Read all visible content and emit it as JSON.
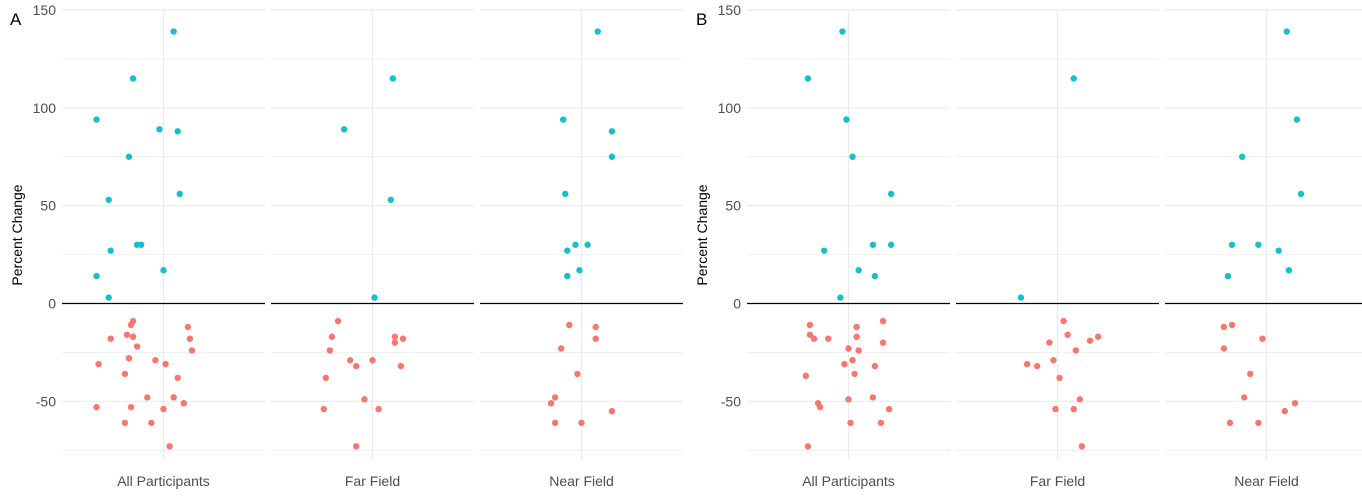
{
  "chart_data": [
    {
      "panel_label": "A",
      "type": "scatter",
      "ylabel": "Percent Change",
      "ylim": [
        -80,
        150
      ],
      "yticks": [
        150,
        100,
        50,
        0,
        -50
      ],
      "reference_line": 0,
      "grid": true,
      "legend": "none",
      "colors": {
        "positive": "#17BECF",
        "negative": "#F8766D",
        "grid": "#EBEBEB",
        "zero_line": "#000000"
      },
      "facets": [
        {
          "name": "All Participants",
          "points": [
            {
              "x": 0.55,
              "y": 139
            },
            {
              "x": 0.35,
              "y": 115
            },
            {
              "x": 0.17,
              "y": 94
            },
            {
              "x": 0.48,
              "y": 89
            },
            {
              "x": 0.57,
              "y": 88
            },
            {
              "x": 0.33,
              "y": 75
            },
            {
              "x": 0.58,
              "y": 56
            },
            {
              "x": 0.23,
              "y": 53
            },
            {
              "x": 0.37,
              "y": 30
            },
            {
              "x": 0.39,
              "y": 30
            },
            {
              "x": 0.24,
              "y": 27
            },
            {
              "x": 0.5,
              "y": 17
            },
            {
              "x": 0.17,
              "y": 14
            },
            {
              "x": 0.23,
              "y": 3
            },
            {
              "x": 0.35,
              "y": -9
            },
            {
              "x": 0.34,
              "y": -11
            },
            {
              "x": 0.62,
              "y": -12
            },
            {
              "x": 0.32,
              "y": -16
            },
            {
              "x": 0.35,
              "y": -17
            },
            {
              "x": 0.24,
              "y": -18
            },
            {
              "x": 0.63,
              "y": -18
            },
            {
              "x": 0.37,
              "y": -22
            },
            {
              "x": 0.64,
              "y": -24
            },
            {
              "x": 0.33,
              "y": -28
            },
            {
              "x": 0.46,
              "y": -29
            },
            {
              "x": 0.18,
              "y": -31
            },
            {
              "x": 0.51,
              "y": -31
            },
            {
              "x": 0.31,
              "y": -36
            },
            {
              "x": 0.57,
              "y": -38
            },
            {
              "x": 0.42,
              "y": -48
            },
            {
              "x": 0.55,
              "y": -48
            },
            {
              "x": 0.6,
              "y": -51
            },
            {
              "x": 0.17,
              "y": -53
            },
            {
              "x": 0.34,
              "y": -53
            },
            {
              "x": 0.5,
              "y": -54
            },
            {
              "x": 0.31,
              "y": -61
            },
            {
              "x": 0.44,
              "y": -61
            },
            {
              "x": 0.53,
              "y": -73
            }
          ]
        },
        {
          "name": "Far Field",
          "points": [
            {
              "x": 0.6,
              "y": 115
            },
            {
              "x": 0.36,
              "y": 89
            },
            {
              "x": 0.59,
              "y": 53
            },
            {
              "x": 0.51,
              "y": 3
            },
            {
              "x": 0.33,
              "y": -9
            },
            {
              "x": 0.61,
              "y": -17
            },
            {
              "x": 0.3,
              "y": -17
            },
            {
              "x": 0.65,
              "y": -18
            },
            {
              "x": 0.61,
              "y": -20
            },
            {
              "x": 0.29,
              "y": -24
            },
            {
              "x": 0.39,
              "y": -29
            },
            {
              "x": 0.5,
              "y": -29
            },
            {
              "x": 0.42,
              "y": -32
            },
            {
              "x": 0.64,
              "y": -32
            },
            {
              "x": 0.27,
              "y": -38
            },
            {
              "x": 0.46,
              "y": -49
            },
            {
              "x": 0.26,
              "y": -54
            },
            {
              "x": 0.53,
              "y": -54
            },
            {
              "x": 0.42,
              "y": -73
            }
          ]
        },
        {
          "name": "Near Field",
          "points": [
            {
              "x": 0.58,
              "y": 139
            },
            {
              "x": 0.41,
              "y": 94
            },
            {
              "x": 0.65,
              "y": 88
            },
            {
              "x": 0.65,
              "y": 75
            },
            {
              "x": 0.42,
              "y": 56
            },
            {
              "x": 0.47,
              "y": 30
            },
            {
              "x": 0.53,
              "y": 30
            },
            {
              "x": 0.43,
              "y": 27
            },
            {
              "x": 0.49,
              "y": 17
            },
            {
              "x": 0.43,
              "y": 14
            },
            {
              "x": 0.44,
              "y": -11
            },
            {
              "x": 0.57,
              "y": -12
            },
            {
              "x": 0.57,
              "y": -18
            },
            {
              "x": 0.4,
              "y": -23
            },
            {
              "x": 0.48,
              "y": -36
            },
            {
              "x": 0.37,
              "y": -48
            },
            {
              "x": 0.35,
              "y": -51
            },
            {
              "x": 0.65,
              "y": -55
            },
            {
              "x": 0.37,
              "y": -61
            },
            {
              "x": 0.5,
              "y": -61
            }
          ]
        }
      ]
    },
    {
      "panel_label": "B",
      "type": "scatter",
      "ylabel": "Percent Change",
      "ylim": [
        -80,
        150
      ],
      "yticks": [
        150,
        100,
        50,
        0,
        -50
      ],
      "reference_line": 0,
      "grid": true,
      "legend": "none",
      "colors": {
        "positive": "#17BECF",
        "negative": "#F8766D",
        "grid": "#EBEBEB",
        "zero_line": "#000000"
      },
      "facets": [
        {
          "name": "All Participants",
          "points": [
            {
              "x": 0.47,
              "y": 139
            },
            {
              "x": 0.3,
              "y": 115
            },
            {
              "x": 0.49,
              "y": 94
            },
            {
              "x": 0.52,
              "y": 75
            },
            {
              "x": 0.71,
              "y": 56
            },
            {
              "x": 0.62,
              "y": 30
            },
            {
              "x": 0.71,
              "y": 30
            },
            {
              "x": 0.38,
              "y": 27
            },
            {
              "x": 0.55,
              "y": 17
            },
            {
              "x": 0.63,
              "y": 14
            },
            {
              "x": 0.46,
              "y": 3
            },
            {
              "x": 0.67,
              "y": -9
            },
            {
              "x": 0.31,
              "y": -11
            },
            {
              "x": 0.54,
              "y": -12
            },
            {
              "x": 0.31,
              "y": -16
            },
            {
              "x": 0.54,
              "y": -17
            },
            {
              "x": 0.33,
              "y": -18
            },
            {
              "x": 0.4,
              "y": -18
            },
            {
              "x": 0.67,
              "y": -20
            },
            {
              "x": 0.5,
              "y": -23
            },
            {
              "x": 0.55,
              "y": -24
            },
            {
              "x": 0.52,
              "y": -29
            },
            {
              "x": 0.48,
              "y": -31
            },
            {
              "x": 0.63,
              "y": -32
            },
            {
              "x": 0.53,
              "y": -36
            },
            {
              "x": 0.29,
              "y": -37
            },
            {
              "x": 0.62,
              "y": -48
            },
            {
              "x": 0.5,
              "y": -49
            },
            {
              "x": 0.35,
              "y": -51
            },
            {
              "x": 0.36,
              "y": -53
            },
            {
              "x": 0.7,
              "y": -54
            },
            {
              "x": 0.66,
              "y": -61
            },
            {
              "x": 0.51,
              "y": -61
            },
            {
              "x": 0.3,
              "y": -73
            }
          ]
        },
        {
          "name": "Far Field",
          "points": [
            {
              "x": 0.58,
              "y": 115
            },
            {
              "x": 0.32,
              "y": 3
            },
            {
              "x": 0.53,
              "y": -9
            },
            {
              "x": 0.55,
              "y": -16
            },
            {
              "x": 0.7,
              "y": -17
            },
            {
              "x": 0.66,
              "y": -19
            },
            {
              "x": 0.46,
              "y": -20
            },
            {
              "x": 0.59,
              "y": -24
            },
            {
              "x": 0.48,
              "y": -29
            },
            {
              "x": 0.35,
              "y": -31
            },
            {
              "x": 0.4,
              "y": -32
            },
            {
              "x": 0.51,
              "y": -38
            },
            {
              "x": 0.61,
              "y": -49
            },
            {
              "x": 0.49,
              "y": -54
            },
            {
              "x": 0.58,
              "y": -54
            },
            {
              "x": 0.62,
              "y": -73
            }
          ]
        },
        {
          "name": "Near Field",
          "points": [
            {
              "x": 0.6,
              "y": 139
            },
            {
              "x": 0.65,
              "y": 94
            },
            {
              "x": 0.38,
              "y": 75
            },
            {
              "x": 0.67,
              "y": 56
            },
            {
              "x": 0.33,
              "y": 30
            },
            {
              "x": 0.46,
              "y": 30
            },
            {
              "x": 0.56,
              "y": 27
            },
            {
              "x": 0.61,
              "y": 17
            },
            {
              "x": 0.31,
              "y": 14
            },
            {
              "x": 0.33,
              "y": -11
            },
            {
              "x": 0.29,
              "y": -12
            },
            {
              "x": 0.48,
              "y": -18
            },
            {
              "x": 0.29,
              "y": -23
            },
            {
              "x": 0.42,
              "y": -36
            },
            {
              "x": 0.39,
              "y": -48
            },
            {
              "x": 0.64,
              "y": -51
            },
            {
              "x": 0.59,
              "y": -55
            },
            {
              "x": 0.46,
              "y": -61
            },
            {
              "x": 0.32,
              "y": -61
            }
          ]
        }
      ]
    }
  ]
}
